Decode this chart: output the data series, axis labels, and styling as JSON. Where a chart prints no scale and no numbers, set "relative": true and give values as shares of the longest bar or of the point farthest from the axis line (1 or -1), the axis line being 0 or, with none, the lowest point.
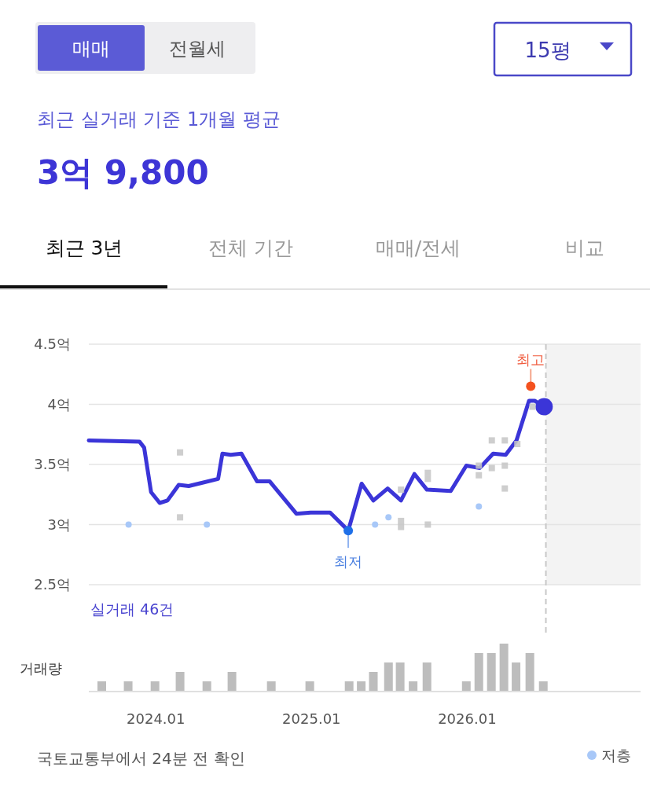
{
  "chart_data": [
    {
      "type": "other",
      "annotations": [
        "매매",
        "전월세",
        "15평",
        "최근 실거래 기준 1개월 평균",
        "3억 9,800",
        "최근 3년",
        "전체 기간",
        "매매/전세",
        "비교"
      ]
    },
    {
      "type": "line",
      "xlim": [
        "2023-07-26",
        "2027-02-12"
      ],
      "tick_labels": "y",
      "ylim": [
        2.5,
        4.5
      ],
      "yticks": [
        {
          "value": 2.5,
          "label": "2.5억"
        },
        {
          "value": 3,
          "label": "3억"
        },
        {
          "value": 3.5,
          "label": "3.5억"
        },
        {
          "value": 4,
          "label": "4억"
        },
        {
          "value": 4.5,
          "label": "4.5억"
        }
      ],
      "grid": "y",
      "legend": "bottom right",
      "bands": [
        {
          "axis": "x",
          "from": "2026-07-03",
          "to": "2027-02-12",
          "color": "#f3f3f3"
        }
      ],
      "ref_lines": [
        {
          "axis": "x",
          "value": "2026-07-03",
          "color": "#c8c8c8",
          "line_style": "dashed"
        }
      ],
      "series": [
        {
          "type": "line",
          "color": "#3b35d8",
          "marker": "none",
          "x": [
            "2023-07-26",
            "2023-11-23",
            "2023-12-04",
            "2023-12-20",
            "2024-01-10",
            "2024-01-28",
            "2024-02-24",
            "2024-03-17",
            "2024-05-25",
            "2024-06-05",
            "2024-06-24",
            "2024-07-19",
            "2024-08-25",
            "2024-09-24",
            "2024-11-26",
            "2024-12-29",
            "2025-02-14",
            "2025-03-26",
            "2025-04-27",
            "2025-05-24",
            "2025-06-27",
            "2025-07-28",
            "2025-08-29",
            "2025-09-28",
            "2025-11-23",
            "2025-12-29",
            "2026-01-30",
            "2026-03-01",
            "2026-03-30",
            "2026-04-25",
            "2026-05-24",
            "2026-06-07",
            "2026-06-29"
          ],
          "values": [
            3.7,
            3.69,
            3.64,
            3.27,
            3.18,
            3.2,
            3.33,
            3.32,
            3.38,
            3.59,
            3.58,
            3.59,
            3.36,
            3.36,
            3.09,
            3.1,
            3.1,
            2.95,
            3.34,
            3.2,
            3.3,
            3.2,
            3.42,
            3.29,
            3.28,
            3.49,
            3.47,
            3.59,
            3.58,
            3.7,
            4.03,
            4.03,
            3.98
          ]
        },
        {
          "type": "scatter",
          "color": "#c6c6c6",
          "marker": "square",
          "x": [
            "2024-02-27",
            "2024-02-27",
            "2025-07-28",
            "2025-07-28",
            "2025-07-28",
            "2025-09-30",
            "2025-09-30",
            "2025-09-30",
            "2026-01-28",
            "2026-01-28",
            "2026-02-28",
            "2026-02-28",
            "2026-03-28",
            "2026-03-28",
            "2026-03-28",
            "2026-04-27",
            "2026-06-02"
          ],
          "values": [
            3.6,
            3.06,
            3.29,
            3.03,
            2.98,
            3.43,
            3.38,
            3.0,
            3.49,
            3.41,
            3.7,
            3.47,
            3.7,
            3.49,
            3.3,
            3.67,
            3.98
          ]
        },
        {
          "type": "scatter",
          "name": "저층",
          "color": "#a8c8f8",
          "marker": "circle",
          "x": [
            "2023-10-28",
            "2024-04-29",
            "2025-05-28",
            "2025-06-29",
            "2026-01-28"
          ],
          "values": [
            3.0,
            3.0,
            3.0,
            3.06,
            3.15
          ]
        }
      ],
      "annotations": [
        "실거래 46건",
        {
          "text": "최고",
          "x": "2026-05-28",
          "y": 4.15
        },
        {
          "text": "최저",
          "x": "2025-03-26",
          "y": 2.95
        }
      ]
    },
    {
      "type": "bar",
      "relative": true,
      "ylabel": "거래량",
      "color": "#bdbdbd",
      "xlim": [
        "2023-07-26",
        "2027-02-12"
      ],
      "xticks": [
        {
          "value": "2024-01",
          "label": "2024.01"
        },
        {
          "value": "2025-01",
          "label": "2025.01"
        },
        {
          "value": "2026-01",
          "label": "2026.01"
        }
      ],
      "x": [
        "2023-08-26",
        "2023-10-27",
        "2023-12-29",
        "2024-02-27",
        "2024-04-29",
        "2024-06-27",
        "2024-09-28",
        "2024-12-27",
        "2025-03-28",
        "2025-04-26",
        "2025-05-24",
        "2025-06-29",
        "2025-07-26",
        "2025-08-26",
        "2025-09-28",
        "2025-12-29",
        "2026-01-28",
        "2026-02-27",
        "2026-03-26",
        "2026-04-24",
        "2026-05-26",
        "2026-06-27"
      ],
      "values": [
        0.2,
        0.2,
        0.2,
        0.4,
        0.2,
        0.4,
        0.2,
        0.2,
        0.2,
        0.2,
        0.4,
        0.6,
        0.6,
        0.2,
        0.6,
        0.2,
        0.8,
        0.8,
        1,
        0.6,
        0.8,
        0.2
      ],
      "annotations": [
        "국토교통부에서 24분 전 확인"
      ]
    }
  ]
}
